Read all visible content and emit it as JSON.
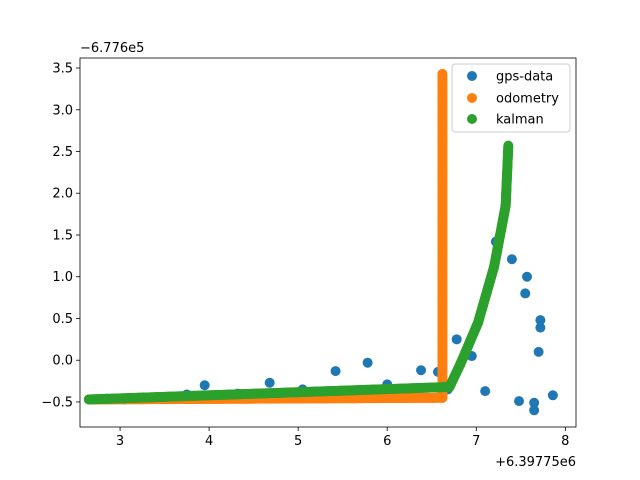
{
  "chart_data": {
    "type": "scatter",
    "title": "",
    "xlabel": "",
    "ylabel": "",
    "x_offset_text": "+6.39775e6",
    "y_offset_text": "−6.776e5",
    "xlim": [
      2.55,
      8.12
    ],
    "ylim": [
      -0.8,
      3.62
    ],
    "x_ticks": [
      3,
      4,
      5,
      6,
      7,
      8
    ],
    "y_ticks": [
      -0.5,
      0.0,
      0.5,
      1.0,
      1.5,
      2.0,
      2.5,
      3.0,
      3.5
    ],
    "x_tick_labels": [
      "3",
      "4",
      "5",
      "6",
      "7",
      "8"
    ],
    "y_tick_labels": [
      "−0.5",
      "0.0",
      "0.5",
      "1.0",
      "1.5",
      "2.0",
      "2.5",
      "3.0",
      "3.5"
    ],
    "grid": false,
    "legend_position": "top-right",
    "series": [
      {
        "name": "gps-data",
        "color": "#1f77b4",
        "points": [
          [
            2.65,
            -0.47
          ],
          [
            2.85,
            -0.46
          ],
          [
            3.05,
            -0.47
          ],
          [
            3.2,
            -0.45
          ],
          [
            3.4,
            -0.46
          ],
          [
            3.58,
            -0.45
          ],
          [
            3.75,
            -0.41
          ],
          [
            3.95,
            -0.3
          ],
          [
            4.15,
            -0.44
          ],
          [
            4.32,
            -0.4
          ],
          [
            4.5,
            -0.43
          ],
          [
            4.68,
            -0.27
          ],
          [
            4.85,
            -0.42
          ],
          [
            5.05,
            -0.35
          ],
          [
            5.22,
            -0.42
          ],
          [
            5.42,
            -0.13
          ],
          [
            5.6,
            -0.41
          ],
          [
            5.78,
            -0.03
          ],
          [
            5.92,
            -0.4
          ],
          [
            6.0,
            -0.29
          ],
          [
            6.2,
            -0.38
          ],
          [
            6.38,
            -0.12
          ],
          [
            6.57,
            -0.14
          ],
          [
            6.68,
            -0.35
          ],
          [
            6.78,
            0.25
          ],
          [
            6.95,
            0.05
          ],
          [
            7.1,
            -0.37
          ],
          [
            7.22,
            1.42
          ],
          [
            7.4,
            1.21
          ],
          [
            7.48,
            -0.49
          ],
          [
            7.55,
            0.8
          ],
          [
            7.57,
            1.0
          ],
          [
            7.65,
            -0.51
          ],
          [
            7.65,
            -0.6
          ],
          [
            7.7,
            0.1
          ],
          [
            7.72,
            0.39
          ],
          [
            7.72,
            0.48
          ],
          [
            7.86,
            -0.42
          ]
        ]
      },
      {
        "name": "odometry",
        "color": "#ff7f0e",
        "segments": [
          {
            "x0": 2.65,
            "y0": -0.47,
            "x1": 6.62,
            "y1": -0.45,
            "n": 320
          },
          {
            "x0": 6.62,
            "y0": -0.45,
            "x1": 6.62,
            "y1": 3.43,
            "n": 200
          }
        ]
      },
      {
        "name": "kalman",
        "color": "#2ca02c",
        "segments": [
          {
            "x0": 2.65,
            "y0": -0.47,
            "x1": 6.7,
            "y1": -0.32,
            "n": 330
          },
          {
            "x0": 6.7,
            "y0": -0.32,
            "x1": 6.82,
            "y1": -0.05,
            "n": 20
          },
          {
            "x0": 6.82,
            "y0": -0.05,
            "x1": 7.02,
            "y1": 0.45,
            "n": 40
          },
          {
            "x0": 7.02,
            "y0": 0.45,
            "x1": 7.2,
            "y1": 1.12,
            "n": 50
          },
          {
            "x0": 7.2,
            "y0": 1.12,
            "x1": 7.33,
            "y1": 1.85,
            "n": 60
          },
          {
            "x0": 7.33,
            "y0": 1.85,
            "x1": 7.36,
            "y1": 2.57,
            "n": 60
          }
        ]
      }
    ]
  }
}
